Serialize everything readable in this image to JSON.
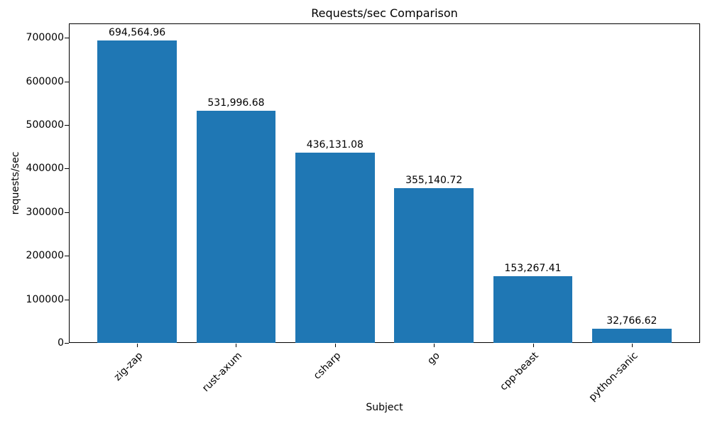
{
  "chart_data": {
    "type": "bar",
    "title": "Requests/sec Comparison",
    "xlabel": "Subject",
    "ylabel": "requests/sec",
    "categories": [
      "zig-zap",
      "rust-axum",
      "csharp",
      "go",
      "cpp-beast",
      "python-sanic"
    ],
    "values": [
      694564.96,
      531996.68,
      436131.08,
      355140.72,
      153267.41,
      32766.62
    ],
    "value_labels": [
      "694,564.96",
      "531,996.68",
      "436,131.08",
      "355,140.72",
      "153,267.41",
      "32,766.62"
    ],
    "yticks": [
      0,
      100000,
      200000,
      300000,
      400000,
      500000,
      600000,
      700000
    ],
    "ytick_labels": [
      "0",
      "100000",
      "200000",
      "300000",
      "400000",
      "500000",
      "600000",
      "700000"
    ],
    "ylim": [
      0,
      733000
    ],
    "bar_color": "#1f77b4",
    "grid": false,
    "legend": "none"
  }
}
